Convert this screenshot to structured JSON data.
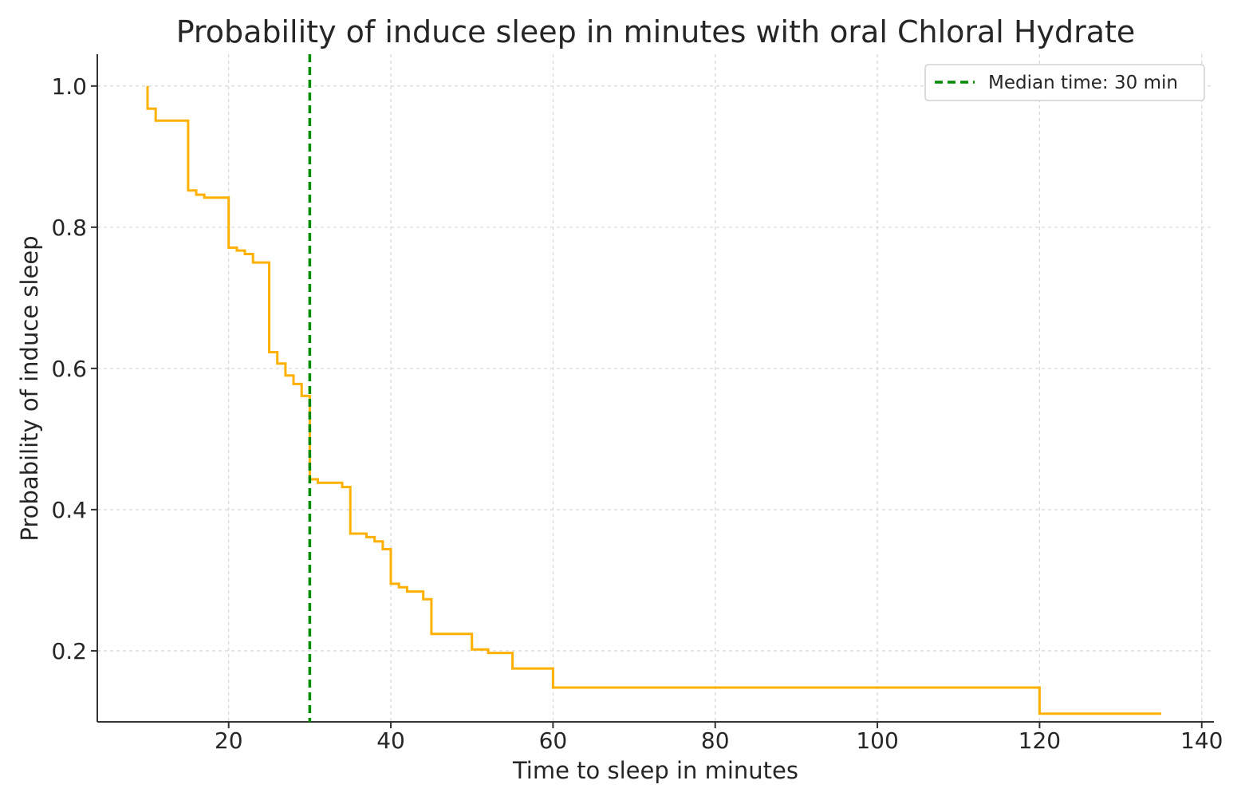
{
  "chart_data": {
    "type": "line",
    "title": "Probability of induce sleep in minutes with oral Chloral Hydrate",
    "xlabel": "Time to sleep in minutes",
    "ylabel": "Probability of induce sleep",
    "xlim": [
      3.8,
      141.5
    ],
    "ylim": [
      0.0994,
      1.045
    ],
    "xticks": [
      20,
      40,
      60,
      80,
      100,
      120,
      140
    ],
    "yticks": [
      0.2,
      0.4,
      0.6,
      0.8,
      1.0
    ],
    "xtick_labels": [
      "20",
      "40",
      "60",
      "80",
      "100",
      "120",
      "140"
    ],
    "ytick_labels": [
      "0.2",
      "0.4",
      "0.6",
      "0.8",
      "1.0"
    ],
    "grid": true,
    "legend_position": "top-right",
    "series": [
      {
        "color": "#ffb000",
        "style": "step-post",
        "points": [
          [
            10,
            1.0
          ],
          [
            10,
            0.968
          ],
          [
            11,
            0.968
          ],
          [
            11,
            0.951
          ],
          [
            15,
            0.951
          ],
          [
            15,
            0.852
          ],
          [
            16,
            0.852
          ],
          [
            16,
            0.846
          ],
          [
            17,
            0.846
          ],
          [
            17,
            0.842
          ],
          [
            20,
            0.842
          ],
          [
            20,
            0.771
          ],
          [
            21,
            0.771
          ],
          [
            21,
            0.767
          ],
          [
            22,
            0.767
          ],
          [
            22,
            0.762
          ],
          [
            23,
            0.762
          ],
          [
            23,
            0.75
          ],
          [
            25,
            0.75
          ],
          [
            25,
            0.623
          ],
          [
            26,
            0.623
          ],
          [
            26,
            0.607
          ],
          [
            27,
            0.607
          ],
          [
            27,
            0.59
          ],
          [
            28,
            0.59
          ],
          [
            28,
            0.578
          ],
          [
            29,
            0.578
          ],
          [
            29,
            0.561
          ],
          [
            30,
            0.561
          ],
          [
            30,
            0.443
          ],
          [
            31,
            0.443
          ],
          [
            31,
            0.438
          ],
          [
            34,
            0.438
          ],
          [
            34,
            0.432
          ],
          [
            35,
            0.432
          ],
          [
            35,
            0.366
          ],
          [
            37,
            0.366
          ],
          [
            37,
            0.361
          ],
          [
            38,
            0.361
          ],
          [
            38,
            0.355
          ],
          [
            39,
            0.355
          ],
          [
            39,
            0.344
          ],
          [
            40,
            0.344
          ],
          [
            40,
            0.295
          ],
          [
            41,
            0.295
          ],
          [
            41,
            0.29
          ],
          [
            42,
            0.29
          ],
          [
            42,
            0.284
          ],
          [
            44,
            0.284
          ],
          [
            44,
            0.273
          ],
          [
            45,
            0.273
          ],
          [
            45,
            0.224
          ],
          [
            50,
            0.224
          ],
          [
            50,
            0.202
          ],
          [
            52,
            0.202
          ],
          [
            52,
            0.197
          ],
          [
            55,
            0.197
          ],
          [
            55,
            0.175
          ],
          [
            60,
            0.175
          ],
          [
            60,
            0.148
          ],
          [
            120,
            0.148
          ],
          [
            120,
            0.111
          ],
          [
            135,
            0.111
          ]
        ]
      }
    ],
    "reference_lines": [
      {
        "orientation": "vertical",
        "x": 30,
        "color": "#008a00",
        "style": "dashed",
        "label": "Median time: 30 min"
      }
    ]
  }
}
